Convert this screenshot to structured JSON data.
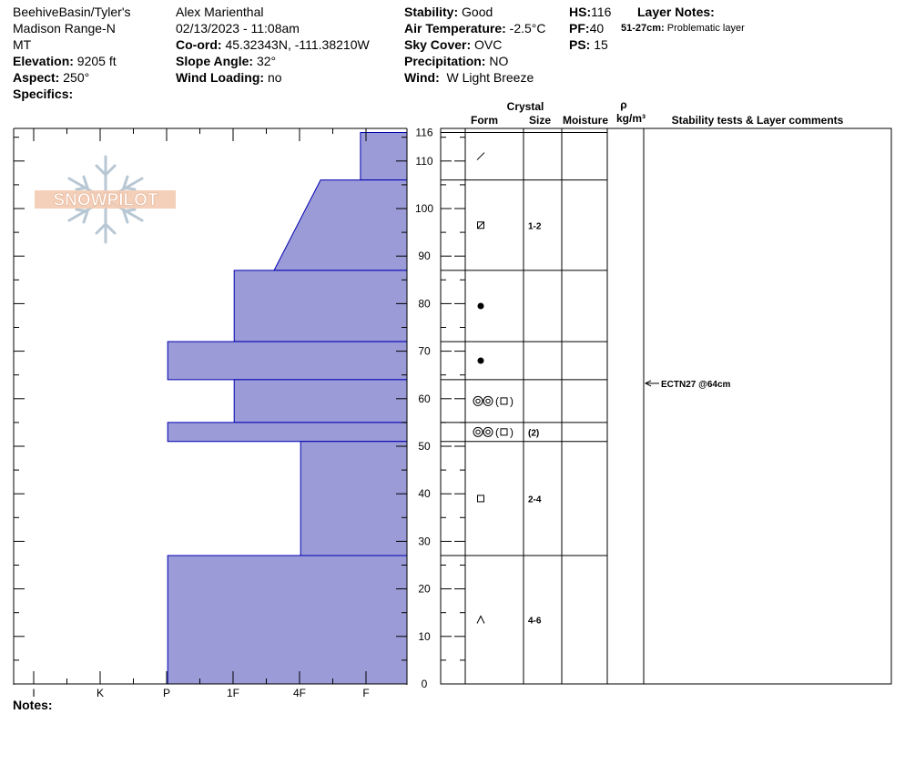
{
  "header": {
    "location_line1": "BeehiveBasin/Tyler's",
    "location_line2": "Madison Range-N",
    "location_line3": "MT",
    "elevation_label": "Elevation:",
    "elevation_value": "9205 ft",
    "aspect_label": "Aspect:",
    "aspect_value": "250°",
    "specifics_label": "Specifics:",
    "observer": "Alex Marienthal",
    "datetime": "02/13/2023 - 11:08am",
    "coord_label": "Co-ord:",
    "coord_value": "45.32343N, -111.38210W",
    "slope_label": "Slope Angle:",
    "slope_value": "32°",
    "wind_loading_label": "Wind Loading:",
    "wind_loading_value": "no",
    "stability_label": "Stability:",
    "stability_value": "Good",
    "air_temp_label": "Air Temperature:",
    "air_temp_value": "-2.5°C",
    "sky_label": "Sky Cover:",
    "sky_value": "OVC",
    "precip_label": "Precipitation:",
    "precip_value": "NO",
    "wind_label": "Wind:",
    "wind_value": "W Light Breeze",
    "hs_label": "HS:",
    "hs_value": "116",
    "pf_label": "PF:",
    "pf_value": "40",
    "ps_label": "PS:",
    "ps_value": "15",
    "layer_notes_label": "Layer Notes:",
    "layer_note_range": "51-27cm:",
    "layer_note_text": "Problematic layer"
  },
  "columns": {
    "crystal": "Crystal",
    "form": "Form",
    "size": "Size",
    "moisture": "Moisture",
    "rho": "ρ",
    "density_unit": "kg/m³",
    "stability": "Stability tests & Layer comments"
  },
  "logo_text": "SNOWPILOT",
  "notes_label": "Notes:",
  "chart_data": {
    "type": "snow-profile",
    "depth_axis": {
      "min": 0,
      "max": 116,
      "unit": "cm",
      "ticks": [
        0,
        10,
        20,
        30,
        40,
        50,
        60,
        70,
        80,
        90,
        100,
        110,
        116
      ]
    },
    "hardness_axis": [
      "I",
      "K",
      "P",
      "1F",
      "4F",
      "F"
    ],
    "layers": [
      {
        "top": 116,
        "bottom": 106,
        "hardness_top": 0.7,
        "hardness_bottom": 0.7,
        "form": "precip-particles",
        "size": ""
      },
      {
        "top": 106,
        "bottom": 87,
        "hardness_top": 1.3,
        "hardness_bottom": 2.0,
        "form": "faceted-rounded",
        "size": "1-2"
      },
      {
        "top": 87,
        "bottom": 72,
        "hardness_top": 2.6,
        "hardness_bottom": 2.6,
        "form": "melt-forms",
        "size": ""
      },
      {
        "top": 72,
        "bottom": 64,
        "hardness_top": 3.6,
        "hardness_bottom": 3.6,
        "form": "melt-forms",
        "size": ""
      },
      {
        "top": 64,
        "bottom": 55,
        "hardness_top": 2.6,
        "hardness_bottom": 2.6,
        "form": "mf-facets",
        "size": ""
      },
      {
        "top": 55,
        "bottom": 51,
        "hardness_top": 3.6,
        "hardness_bottom": 3.6,
        "form": "mf-facets",
        "size": "(2)"
      },
      {
        "top": 51,
        "bottom": 27,
        "hardness_top": 1.6,
        "hardness_bottom": 1.6,
        "form": "faceted",
        "size": "2-4"
      },
      {
        "top": 27,
        "bottom": 0,
        "hardness_top": 3.6,
        "hardness_bottom": 3.6,
        "form": "depth-hoar",
        "size": "4-6"
      }
    ],
    "tests": [
      {
        "depth": 64,
        "text": "ECTN27 @64cm"
      }
    ]
  }
}
